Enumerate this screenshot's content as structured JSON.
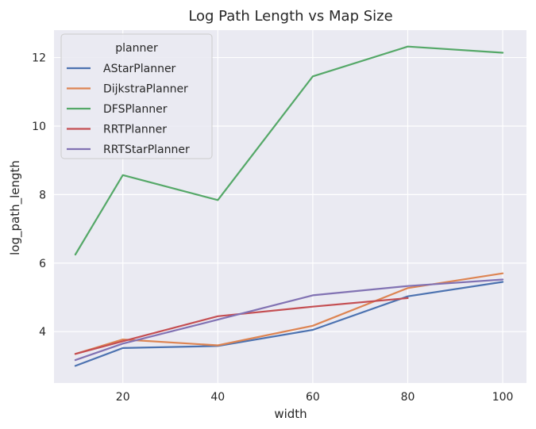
{
  "chart_data": {
    "type": "line",
    "title": "Log Path Length vs Map Size",
    "xlabel": "width",
    "ylabel": "log_path_length",
    "x": [
      10,
      20,
      40,
      60,
      80,
      100
    ],
    "xticks": [
      20,
      40,
      60,
      80,
      100
    ],
    "yticks": [
      4,
      6,
      8,
      10,
      12
    ],
    "xlim": [
      5.5,
      105
    ],
    "ylim": [
      2.5,
      12.8
    ],
    "grid": true,
    "legend": {
      "title": "planner",
      "placement": "top-left"
    },
    "series": [
      {
        "name": "AStarPlanner",
        "color": "#4c72b0",
        "values": [
          3.0,
          3.52,
          3.58,
          4.05,
          5.03,
          5.45
        ]
      },
      {
        "name": "DijkstraPlanner",
        "color": "#dd8452",
        "values": [
          3.35,
          3.77,
          3.6,
          4.17,
          5.27,
          5.7
        ]
      },
      {
        "name": "DFSPlanner",
        "color": "#55a868",
        "values": [
          6.25,
          8.57,
          7.84,
          11.45,
          12.32,
          12.14
        ]
      },
      {
        "name": "RRTPlanner",
        "color": "#c44e52",
        "values": [
          3.35,
          3.72,
          4.45,
          4.73,
          4.98,
          null
        ]
      },
      {
        "name": "RRTStarPlanner",
        "color": "#8172b3",
        "values": [
          3.17,
          3.65,
          4.35,
          5.06,
          5.33,
          5.52
        ]
      }
    ]
  }
}
